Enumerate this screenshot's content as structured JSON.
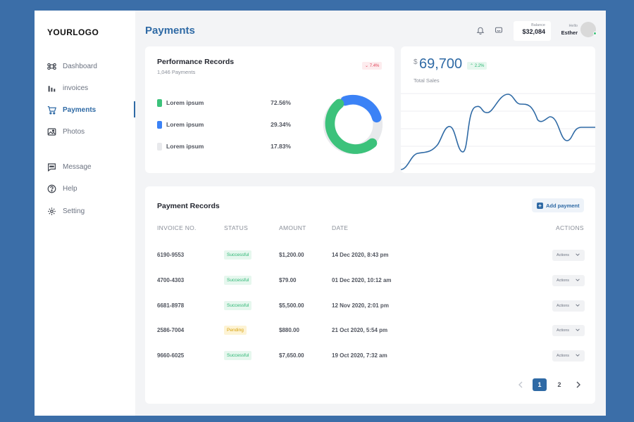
{
  "logo": "YOURLOGO",
  "sidebar": {
    "items": [
      {
        "label": "Dashboard",
        "icon": "command-icon"
      },
      {
        "label": "invoices",
        "icon": "bar-chart-icon"
      },
      {
        "label": "Payments",
        "icon": "cart-icon",
        "active": true
      },
      {
        "label": "Photos",
        "icon": "image-icon"
      },
      {
        "label": "Message",
        "icon": "message-icon"
      },
      {
        "label": "Help",
        "icon": "help-icon"
      },
      {
        "label": "Setting",
        "icon": "gear-icon"
      }
    ]
  },
  "header": {
    "title": "Payments",
    "balance_label": "Balance",
    "balance_value": "$32,084",
    "hello": "Hello",
    "user_name": "Esther"
  },
  "performance": {
    "title": "Performance Records",
    "subtitle": "1,046 Payments",
    "change": "7.4%",
    "legend": [
      {
        "name": "Lorem ipsum",
        "value": "72.56%",
        "color": "#3cc27b"
      },
      {
        "name": "Lorem ipsum",
        "value": "29.34%",
        "color": "#3b82f6"
      },
      {
        "name": "Lorem ipsum",
        "value": "17.83%",
        "color": "#e8e9ec"
      }
    ]
  },
  "sales": {
    "currency": "$",
    "value": "69,700",
    "change": "2.2%",
    "label": "Total Sales"
  },
  "records": {
    "title": "Payment Records",
    "add_label": "Add payment",
    "columns": [
      "INVOICE NO.",
      "STATUS",
      "AMOUNT",
      "DATE",
      "ACTIONS"
    ],
    "rows": [
      {
        "invoice": "6190-9553",
        "status": "Successful",
        "amount": "$1,200.00",
        "date": "14 Dec 2020, 8:43 pm",
        "action": "Actions"
      },
      {
        "invoice": "4700-4303",
        "status": "Successful",
        "amount": "$79.00",
        "date": "01 Dec 2020, 10:12 am",
        "action": "Actions"
      },
      {
        "invoice": "6681-8978",
        "status": "Successful",
        "amount": "$5,500.00",
        "date": "12 Nov 2020, 2:01 pm",
        "action": "Actions"
      },
      {
        "invoice": "2586-7004",
        "status": "Pending",
        "amount": "$880.00",
        "date": "21 Oct 2020, 5:54 pm",
        "action": "Actions"
      },
      {
        "invoice": "9660-6025",
        "status": "Successful",
        "amount": "$7,650.00",
        "date": "19 Oct 2020, 7:32 am",
        "action": "Actions"
      }
    ],
    "pages": [
      "1",
      "2"
    ]
  },
  "colors": {
    "accent": "#2f6aa5",
    "success": "#2bb673",
    "pending": "#d7a10a"
  }
}
